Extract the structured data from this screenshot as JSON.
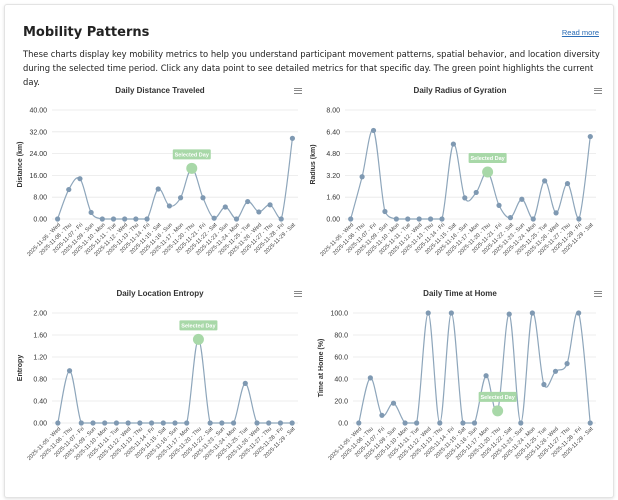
{
  "header": {
    "title": "Mobility Patterns",
    "read_more": "Read more",
    "description": "These charts display key mobility metrics to help you understand participant movement patterns, spatial behavior, and location diversity during the selected time period. Click any data point to see detailed metrics for that specific day. The green point highlights the current day."
  },
  "colors": {
    "line": "#8ea6bb",
    "point": "#7f99b2",
    "selected": "#a8d8a8",
    "grid": "#e8e8e8"
  },
  "menu_icon": "hamburger-menu-icon",
  "chart_data": [
    {
      "type": "line",
      "title": "Daily Distance Traveled",
      "ylabel": "Distance (km)",
      "ylim": [
        0,
        40
      ],
      "yticks": [
        "0.00",
        "8.00",
        "16.00",
        "24.00",
        "32.00",
        "40.00"
      ],
      "selected_label": "Selected Day",
      "selected_index": 12,
      "categories": [
        "2025-11-05 - Wed",
        "2025-11-06 - Thu",
        "2025-11-07 - Fri",
        "2025-11-09 - Sun",
        "2025-11-10 - Mon",
        "2025-11-11 - Tue",
        "2025-11-12 - Wed",
        "2025-11-13 - Thu",
        "2025-11-14 - Fri",
        "2025-11-15 - Sat",
        "2025-11-16 - Sun",
        "2025-11-17 - Mon",
        "2025-11-20 - Thu",
        "2025-11-21 - Fri",
        "2025-11-22 - Sat",
        "2025-11-23 - Sun",
        "2025-11-24 - Mon",
        "2025-11-25 - Tue",
        "2025-11-26 - Wed",
        "2025-11-27 - Thu",
        "2025-11-28 - Fri",
        "2025-11-29 - Sat"
      ],
      "values": [
        0,
        10.8,
        14.8,
        2.4,
        0,
        0,
        0,
        0,
        0,
        11,
        4.8,
        7.8,
        18.6,
        7.8,
        0.3,
        4.4,
        0,
        6.4,
        2.6,
        5.2,
        0,
        29.6
      ]
    },
    {
      "type": "line",
      "title": "Daily Radius of Gyration",
      "ylabel": "Radius (km)",
      "ylim": [
        0,
        8
      ],
      "yticks": [
        "0.00",
        "1.60",
        "3.20",
        "4.80",
        "6.40",
        "8.00"
      ],
      "selected_label": "Selected Day",
      "selected_index": 12,
      "categories": [
        "2025-11-05 - Wed",
        "2025-11-06 - Thu",
        "2025-11-07 - Fri",
        "2025-11-09 - Sun",
        "2025-11-10 - Mon",
        "2025-11-11 - Tue",
        "2025-11-12 - Wed",
        "2025-11-13 - Thu",
        "2025-11-14 - Fri",
        "2025-11-15 - Sat",
        "2025-11-16 - Sun",
        "2025-11-17 - Mon",
        "2025-11-20 - Thu",
        "2025-11-21 - Fri",
        "2025-11-22 - Sat",
        "2025-11-23 - Sun",
        "2025-11-24 - Mon",
        "2025-11-25 - Tue",
        "2025-11-26 - Wed",
        "2025-11-27 - Thu",
        "2025-11-28 - Fri",
        "2025-11-29 - Sat"
      ],
      "values": [
        0,
        3.1,
        6.5,
        0.55,
        0,
        0,
        0,
        0,
        0,
        5.5,
        1.55,
        1.95,
        3.45,
        1.0,
        0.1,
        1.45,
        0,
        2.8,
        0.45,
        2.6,
        0,
        6.05
      ]
    },
    {
      "type": "line",
      "title": "Daily Location Entropy",
      "ylabel": "Entropy",
      "ylim": [
        0,
        2
      ],
      "yticks": [
        "0.00",
        "0.40",
        "0.80",
        "1.20",
        "1.60",
        "2.00"
      ],
      "selected_label": "Selected Day",
      "selected_index": 12,
      "categories": [
        "2025-11-05 - Wed",
        "2025-11-06 - Thu",
        "2025-11-07 - Fri",
        "2025-11-09 - Sun",
        "2025-11-10 - Mon",
        "2025-11-11 - Tue",
        "2025-11-12 - Wed",
        "2025-11-13 - Thu",
        "2025-11-14 - Fri",
        "2025-11-15 - Sat",
        "2025-11-16 - Sun",
        "2025-11-17 - Mon",
        "2025-11-20 - Thu",
        "2025-11-22 - Sat",
        "2025-11-23 - Sun",
        "2025-11-24 - Mon",
        "2025-11-25 - Tue",
        "2025-11-26 - Wed",
        "2025-11-27 - Thu",
        "2025-11-28 - Fri",
        "2025-11-29 - Sat"
      ],
      "values": [
        0,
        0.95,
        0,
        0,
        0,
        0,
        0,
        0,
        0,
        0,
        0,
        0,
        1.52,
        0,
        0,
        0,
        0.72,
        0,
        0,
        0,
        0
      ]
    },
    {
      "type": "line",
      "title": "Daily Time at Home",
      "ylabel": "Time at Home (%)",
      "ylim": [
        0,
        100
      ],
      "yticks": [
        "0.0",
        "20.0",
        "40.0",
        "60.0",
        "80.0",
        "100.0"
      ],
      "selected_label": "Selected Day",
      "selected_index": 12,
      "categories": [
        "2025-11-05 - Wed",
        "2025-11-06 - Thu",
        "2025-11-07 - Fri",
        "2025-11-09 - Sun",
        "2025-11-10 - Mon",
        "2025-11-11 - Tue",
        "2025-11-12 - Wed",
        "2025-11-13 - Thu",
        "2025-11-14 - Fri",
        "2025-11-15 - Sat",
        "2025-11-16 - Sun",
        "2025-11-17 - Mon",
        "2025-11-20 - Thu",
        "2025-11-22 - Sat",
        "2025-11-23 - Sun",
        "2025-11-24 - Mon",
        "2025-11-25 - Tue",
        "2025-11-26 - Wed",
        "2025-11-27 - Thu",
        "2025-11-28 - Fri",
        "2025-11-29 - Sat"
      ],
      "values": [
        0,
        41,
        7,
        18,
        0,
        0,
        100,
        0,
        100,
        0,
        0,
        43,
        11,
        99,
        0,
        100,
        35,
        47,
        54,
        100,
        0
      ]
    }
  ]
}
